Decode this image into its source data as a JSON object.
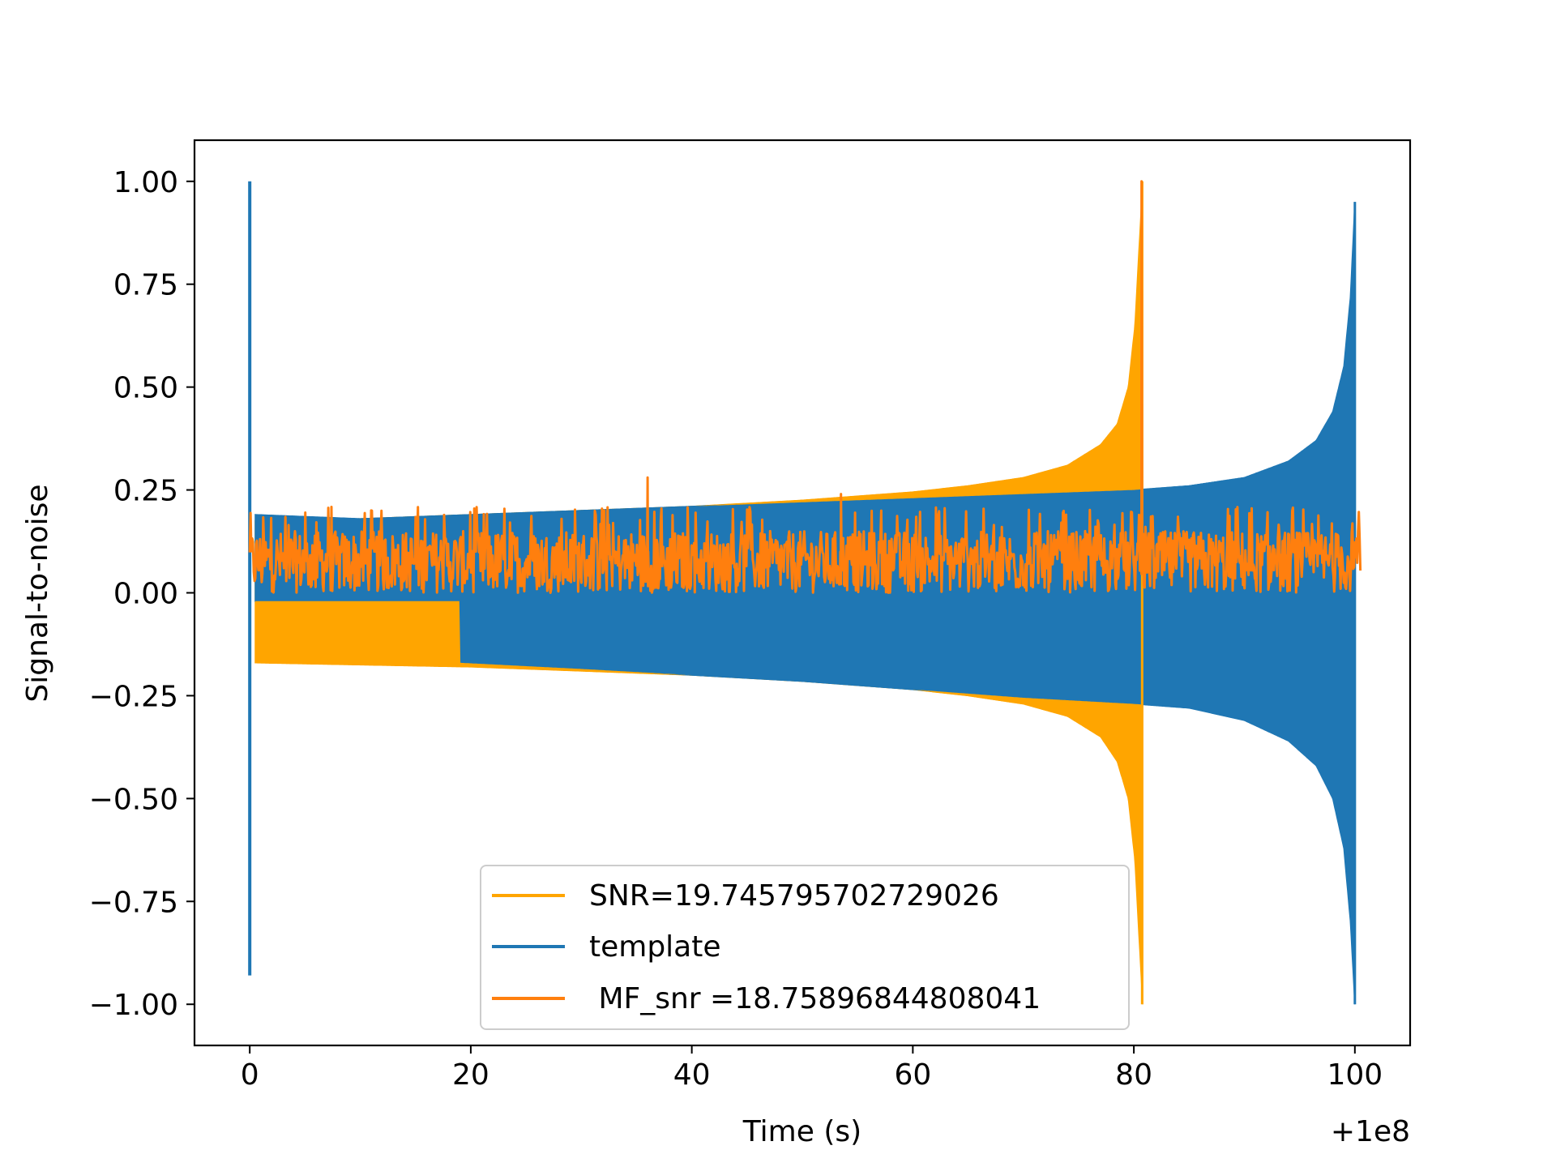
{
  "chart_data": {
    "type": "line",
    "title": "",
    "xlabel": "Time (s)",
    "ylabel": "Signal-to-noise",
    "x_offset_label": "+1e8",
    "xlim": [
      -5,
      105
    ],
    "ylim": [
      -1.1,
      1.1
    ],
    "xticks": [
      0,
      20,
      40,
      60,
      80,
      100
    ],
    "yticks": [
      1.0,
      0.75,
      0.5,
      0.25,
      0.0,
      -0.25,
      -0.5,
      -0.75,
      -1.0
    ],
    "xtick_labels": [
      "0",
      "20",
      "40",
      "60",
      "80",
      "100"
    ],
    "ytick_labels": [
      "1.00",
      "0.75",
      "0.50",
      "0.25",
      "0.00",
      "−0.25",
      "−0.50",
      "−0.75",
      "−1.00"
    ],
    "grid": false,
    "legend_position": "lower-center",
    "series": [
      {
        "name": "SNR=19.745795702729026",
        "color": "#ffa500",
        "kind": "chirp-envelope",
        "t_start": 0,
        "t_end": 80.8,
        "upper_envelope": [
          [
            0.5,
            0.175
          ],
          [
            10,
            0.18
          ],
          [
            20,
            0.19
          ],
          [
            30,
            0.2
          ],
          [
            40,
            0.21
          ],
          [
            50,
            0.225
          ],
          [
            60,
            0.245
          ],
          [
            65,
            0.26
          ],
          [
            70,
            0.28
          ],
          [
            74,
            0.31
          ],
          [
            77,
            0.36
          ],
          [
            78.5,
            0.41
          ],
          [
            79.5,
            0.5
          ],
          [
            80.1,
            0.65
          ],
          [
            80.5,
            0.85
          ],
          [
            80.8,
            1.0
          ]
        ],
        "lower_envelope": [
          [
            0.5,
            -0.17
          ],
          [
            10,
            -0.175
          ],
          [
            20,
            -0.18
          ],
          [
            30,
            -0.19
          ],
          [
            40,
            -0.2
          ],
          [
            50,
            -0.215
          ],
          [
            60,
            -0.235
          ],
          [
            65,
            -0.25
          ],
          [
            70,
            -0.27
          ],
          [
            74,
            -0.3
          ],
          [
            77,
            -0.35
          ],
          [
            78.5,
            -0.41
          ],
          [
            79.5,
            -0.5
          ],
          [
            80.1,
            -0.65
          ],
          [
            80.5,
            -0.85
          ],
          [
            80.8,
            -1.0
          ]
        ]
      },
      {
        "name": "template",
        "color": "#1f77b4",
        "kind": "chirp-envelope",
        "t_start": 0,
        "t_end": 100,
        "upper_envelope": [
          [
            0.5,
            0.19
          ],
          [
            10,
            0.18
          ],
          [
            20,
            0.19
          ],
          [
            30,
            0.2
          ],
          [
            40,
            0.21
          ],
          [
            50,
            0.22
          ],
          [
            60,
            0.23
          ],
          [
            70,
            0.24
          ],
          [
            80,
            0.25
          ],
          [
            85,
            0.26
          ],
          [
            90,
            0.28
          ],
          [
            94,
            0.32
          ],
          [
            96.5,
            0.37
          ],
          [
            98,
            0.44
          ],
          [
            99,
            0.55
          ],
          [
            99.6,
            0.72
          ],
          [
            100,
            0.95
          ]
        ],
        "lower_envelope": [
          [
            0.5,
            -0.02
          ],
          [
            10,
            -0.02
          ],
          [
            19,
            -0.02
          ],
          [
            19.01,
            -0.17
          ],
          [
            30,
            -0.185
          ],
          [
            40,
            -0.2
          ],
          [
            50,
            -0.215
          ],
          [
            60,
            -0.235
          ],
          [
            70,
            -0.255
          ],
          [
            80,
            -0.27
          ],
          [
            85,
            -0.28
          ],
          [
            90,
            -0.31
          ],
          [
            94,
            -0.36
          ],
          [
            96.5,
            -0.42
          ],
          [
            98,
            -0.5
          ],
          [
            99,
            -0.62
          ],
          [
            99.6,
            -0.8
          ],
          [
            100,
            -1.0
          ]
        ],
        "spikes": [
          {
            "x": 0,
            "y_max": 1.0,
            "y_min": -0.93
          }
        ]
      },
      {
        "name": " MF_snr =18.75896844808041",
        "color": "#ff7f0e",
        "kind": "noise-band",
        "t_start": 0,
        "t_end": 100.5,
        "band_low": 0.0,
        "band_high": 0.15,
        "peaks": [
          {
            "x": 36,
            "y": 0.28
          },
          {
            "x": 53.5,
            "y": 0.24
          },
          {
            "x": 80.7,
            "y": 1.0
          }
        ]
      }
    ]
  },
  "colors": {
    "axes": "#000000",
    "background": "#ffffff",
    "legend_border": "#cccccc"
  }
}
